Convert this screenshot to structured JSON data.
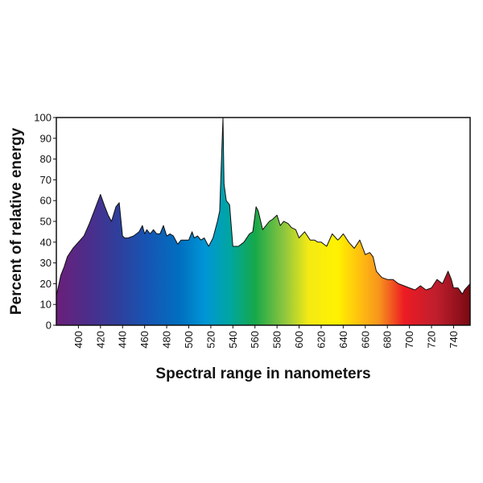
{
  "chart_data": {
    "type": "area",
    "title": "",
    "xlabel": "Spectral range in nanometers",
    "ylabel": "Percent of relative energy",
    "xlim": [
      380,
      755
    ],
    "ylim": [
      0,
      100
    ],
    "x_ticks": [
      400,
      420,
      440,
      460,
      480,
      500,
      520,
      540,
      560,
      580,
      600,
      620,
      640,
      660,
      680,
      700,
      720,
      740
    ],
    "y_ticks": [
      0,
      10,
      20,
      30,
      40,
      50,
      60,
      70,
      80,
      90,
      100
    ],
    "grid": false,
    "fill": "visible-spectrum gradient (violet to deep red)",
    "series": [
      {
        "x": [
          380,
          384,
          387,
          390,
          395,
          400,
          405,
          410,
          415,
          420,
          424,
          427,
          430,
          434,
          437,
          440,
          442,
          445,
          450,
          455,
          458,
          460,
          462,
          465,
          468,
          471,
          474,
          477,
          480,
          483,
          486,
          490,
          493,
          497,
          500,
          503,
          505,
          508,
          511,
          514,
          518,
          522,
          526,
          528,
          530,
          531,
          532,
          534,
          537,
          540,
          542,
          545,
          550,
          555,
          558,
          561,
          563,
          567,
          570,
          573,
          576,
          580,
          583,
          586,
          590,
          593,
          597,
          600,
          605,
          610,
          614,
          617,
          620,
          625,
          630,
          635,
          637,
          640,
          645,
          650,
          655,
          660,
          664,
          667,
          670,
          675,
          680,
          685,
          690,
          695,
          700,
          705,
          710,
          715,
          720,
          725,
          730,
          735,
          738,
          740,
          744,
          748,
          750,
          755
        ],
        "values": [
          14,
          24,
          28,
          33,
          37,
          40,
          43,
          49,
          56,
          63,
          57,
          53,
          50,
          57,
          59,
          43,
          42,
          42,
          43,
          45,
          48,
          44,
          46,
          44,
          46,
          44,
          44,
          48,
          43,
          44,
          43,
          39,
          41,
          41,
          41,
          45,
          42,
          43,
          41,
          42,
          38,
          42,
          50,
          55,
          85,
          100,
          68,
          60,
          58,
          38,
          38,
          38,
          40,
          44,
          45,
          57,
          55,
          46,
          48,
          50,
          51,
          53,
          48,
          50,
          49,
          47,
          46,
          42,
          45,
          41,
          41,
          40,
          40,
          38,
          44,
          41,
          42,
          44,
          40,
          37,
          41,
          34,
          35,
          33,
          26,
          23,
          22,
          22,
          20,
          19,
          18,
          17,
          19,
          17,
          18,
          22,
          20,
          26,
          22,
          18,
          18,
          15,
          17,
          20
        ]
      }
    ]
  }
}
